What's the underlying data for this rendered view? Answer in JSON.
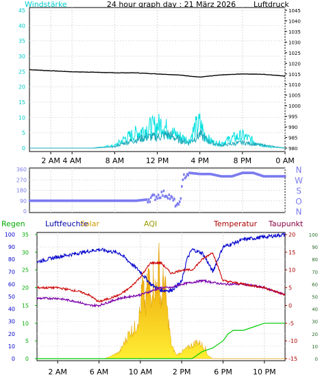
{
  "colors": {
    "wind_label": "#00cccc",
    "wind_avg": "#2dd4d4",
    "wind_gust": "#00e0e0",
    "pressure": "#000000",
    "direction": "#7b7bef",
    "humidity": "#0000cc",
    "temperature": "#cc0000",
    "dewpoint": "#7a00aa",
    "rain": "#00cc00",
    "solar_top": "#e8a800",
    "solar_bottom": "#ffee33",
    "aqi": "#999900",
    "regen_label": "#00aa00",
    "temp_label": "#aa0000",
    "taupunkt_label": "#880044",
    "solar_label": "#cc9900"
  },
  "header": {
    "left_label": "Windstärke",
    "title": "24 hour graph day : 21 März 2026",
    "right_label": "Luftdruck"
  },
  "legend2": {
    "regen": "Regen",
    "luftfeuchte": "Luftfeuchte",
    "solar": "Solar",
    "aqi": "AQI",
    "temperatur": "Temperatur",
    "taupunkt": "Taupunkt"
  },
  "chart_data": [
    {
      "type": "line",
      "name": "wind_pressure",
      "x_ticks": [
        "2 AM",
        "4 AM",
        "8 AM",
        "12 PM",
        "4 PM",
        "8 PM",
        "0 AM"
      ],
      "x_tick_hours": [
        2,
        4,
        8,
        12,
        16,
        20,
        24
      ],
      "y_left_ticks": [
        "45",
        "40",
        "35",
        "30",
        "25",
        "20",
        "15",
        "10",
        "5",
        "0"
      ],
      "y_left_range": [
        0,
        45
      ],
      "y_right_ticks": [
        "1045",
        "1040",
        "1035",
        "1030",
        "1025",
        "1020",
        "1015",
        "1010",
        "1005",
        "1000",
        "995",
        "990",
        "985",
        "980"
      ],
      "y_right_range": [
        980,
        1045
      ],
      "series": [
        {
          "key": "pressure",
          "axis": "right",
          "x": [
            0,
            2,
            4,
            6,
            8,
            10,
            12,
            14,
            16,
            18,
            20,
            22,
            24
          ],
          "values": [
            1017,
            1016.5,
            1016,
            1015.8,
            1015.5,
            1015.5,
            1015,
            1014.5,
            1013.5,
            1014.5,
            1015,
            1014.8,
            1014
          ]
        },
        {
          "key": "wind_gust",
          "axis": "left",
          "x": [
            0,
            6,
            8,
            9,
            10,
            11,
            12,
            12.5,
            13,
            14,
            15,
            15.5,
            16,
            16.5,
            17,
            17.5,
            18,
            19,
            20,
            21,
            22,
            22.5,
            24
          ],
          "values": [
            0,
            0,
            1,
            4,
            6,
            8,
            9,
            10,
            7,
            5,
            3,
            8,
            10,
            5,
            3,
            2,
            2,
            4,
            5,
            3,
            1,
            0.5,
            0
          ]
        },
        {
          "key": "wind_avg",
          "axis": "left",
          "x": [
            0,
            6,
            8,
            9,
            10,
            11,
            12,
            13,
            14,
            15,
            16,
            17,
            18,
            20,
            22,
            24
          ],
          "values": [
            0,
            0,
            0.5,
            2,
            3,
            4,
            4,
            5,
            3,
            2,
            5,
            2,
            1,
            2,
            1,
            0
          ]
        }
      ]
    },
    {
      "type": "scatter",
      "name": "wind_direction",
      "y_ticks": [
        "360",
        "270",
        "180",
        "90",
        "0"
      ],
      "y_range": [
        0,
        360
      ],
      "compass": [
        "N",
        "W",
        "S",
        "O",
        "N"
      ],
      "series": [
        {
          "key": "direction",
          "x": [
            0,
            2,
            4,
            6,
            8,
            10,
            11,
            12,
            12.5,
            13,
            13.5,
            14,
            14.5,
            15,
            16,
            17,
            18,
            19,
            20,
            21,
            22,
            23,
            24
          ],
          "values": [
            90,
            90,
            90,
            90,
            90,
            90,
            100,
            130,
            150,
            140,
            90,
            30,
            300,
            330,
            320,
            320,
            300,
            300,
            330,
            330,
            300,
            300,
            300
          ]
        }
      ]
    },
    {
      "type": "line",
      "name": "temp_humidity_rain",
      "x_ticks": [
        "2 AM",
        "6 AM",
        "10 AM",
        "2 PM",
        "6 PM",
        "10 PM"
      ],
      "x_tick_hours": [
        2,
        6,
        10,
        14,
        18,
        22
      ],
      "y_humidity_ticks": [
        "100",
        "90",
        "80",
        "70",
        "60",
        "50",
        "40",
        "30",
        "20",
        "10",
        "0"
      ],
      "y_humidity_range": [
        0,
        100
      ],
      "y_rain_ticks": [
        "35",
        "30",
        "25",
        "20",
        "15",
        "10",
        "5",
        "0"
      ],
      "y_rain_range": [
        0,
        35
      ],
      "y_temp_ticks": [
        "20",
        "15",
        "10",
        "5",
        "0",
        "-5",
        "-10",
        "-15"
      ],
      "y_temp_range": [
        -15,
        20
      ],
      "y_far_right_ticks": [
        "100",
        "90",
        "80",
        "70",
        "60",
        "50",
        "40",
        "30",
        "20",
        "10",
        "0"
      ],
      "series": [
        {
          "key": "humidity",
          "axis": "humidity",
          "x": [
            0,
            2,
            4,
            6,
            8,
            10,
            11,
            12,
            13,
            14,
            14.5,
            15,
            16,
            16.5,
            17,
            18,
            20,
            22,
            24
          ],
          "values": [
            78,
            82,
            85,
            88,
            85,
            70,
            60,
            55,
            55,
            62,
            80,
            88,
            85,
            78,
            70,
            90,
            96,
            98,
            100
          ]
        },
        {
          "key": "temperature",
          "axis": "temp",
          "x": [
            0,
            2,
            4,
            5,
            6,
            7,
            8,
            9,
            10,
            11,
            12,
            13,
            14,
            15,
            16,
            17,
            18,
            20,
            22,
            24
          ],
          "values": [
            5,
            5,
            4,
            3,
            1,
            2,
            3,
            5,
            8,
            12,
            12,
            9,
            10,
            10,
            13,
            15,
            7,
            6,
            5,
            3
          ]
        },
        {
          "key": "dewpoint",
          "axis": "temp",
          "x": [
            0,
            2,
            4,
            5,
            6,
            8,
            10,
            11,
            12,
            13,
            14,
            16,
            18,
            20,
            22,
            24
          ],
          "values": [
            2,
            2,
            1,
            0,
            0,
            2,
            3,
            4,
            5,
            5,
            6,
            7,
            6,
            6,
            5,
            3
          ]
        },
        {
          "key": "rain",
          "axis": "rain",
          "x": [
            0,
            15,
            15.5,
            16,
            17,
            18,
            18.5,
            19,
            20,
            21,
            22,
            23,
            24
          ],
          "values": [
            0,
            0,
            1,
            2,
            3,
            5,
            7,
            8,
            8,
            9,
            10,
            10,
            10
          ]
        },
        {
          "key": "solar",
          "axis": "rain",
          "x": [
            0,
            6.5,
            7,
            8,
            8.5,
            9,
            9.5,
            10,
            10.2,
            10.5,
            10.8,
            11,
            11.2,
            11.5,
            11.8,
            12,
            12.3,
            12.6,
            13,
            13.5,
            14,
            15,
            15.5,
            16,
            16.3,
            16.5,
            17,
            24
          ],
          "values": [
            0,
            0,
            0.5,
            2,
            5,
            8,
            9,
            14,
            22,
            15,
            26,
            18,
            24,
            20,
            28,
            16,
            25,
            14,
            4,
            1,
            2,
            4,
            5,
            4,
            3,
            1,
            0,
            0
          ]
        }
      ]
    }
  ]
}
